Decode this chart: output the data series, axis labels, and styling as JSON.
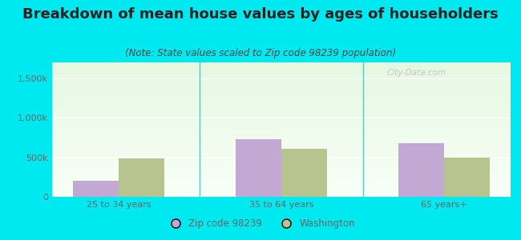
{
  "title": "Breakdown of mean house values by ages of householders",
  "subtitle": "(Note: State values scaled to Zip code 98239 population)",
  "categories": [
    "25 to 34 years",
    "35 to 64 years",
    "65 years+"
  ],
  "zip_values": [
    200000,
    730000,
    680000
  ],
  "state_values": [
    490000,
    610000,
    500000
  ],
  "ylim": [
    0,
    1700000
  ],
  "yticks": [
    0,
    500000,
    1000000,
    1500000
  ],
  "ytick_labels": [
    "0",
    "500k",
    "1,000k",
    "1,500k"
  ],
  "zip_color": "#c4a8d4",
  "state_color": "#b8c490",
  "background_outer": "#00e8f0",
  "legend_zip_label": "Zip code 98239",
  "legend_state_label": "Washington",
  "bar_width": 0.28,
  "title_fontsize": 13,
  "subtitle_fontsize": 8.5,
  "tick_label_fontsize": 8,
  "title_color": "#222222",
  "subtitle_color": "#444444",
  "tick_color": "#666666"
}
